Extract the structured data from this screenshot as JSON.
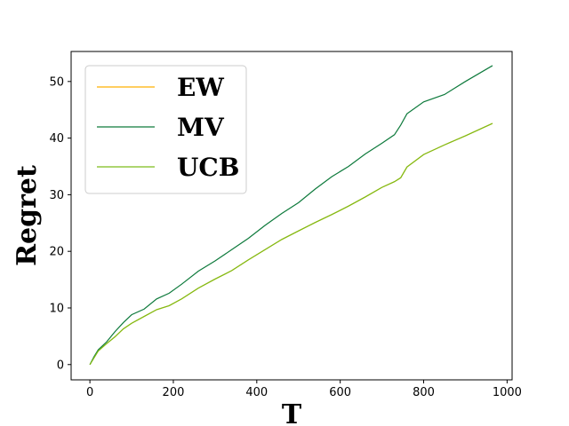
{
  "chart_data": {
    "type": "line",
    "title": "",
    "xlabel": "T",
    "ylabel": "Regret",
    "xlim": [
      -45,
      1012
    ],
    "ylim": [
      -2.7,
      55.3
    ],
    "xticks": [
      0,
      200,
      400,
      600,
      800,
      1000
    ],
    "yticks": [
      0,
      10,
      20,
      30,
      40,
      50
    ],
    "xtick_labels": [
      "0",
      "200",
      "400",
      "600",
      "800",
      "1000"
    ],
    "ytick_labels": [
      "0",
      "10",
      "20",
      "30",
      "40",
      "50"
    ],
    "grid": false,
    "legend_position": "top-left",
    "series": [
      {
        "name": "EW",
        "color": "#ffb000",
        "x": [
          0,
          10,
          20,
          40,
          60,
          80,
          100,
          130,
          160,
          190,
          220,
          260,
          300,
          340,
          380,
          420,
          460,
          500,
          540,
          580,
          620,
          660,
          700,
          730,
          745,
          760,
          800,
          850,
          900,
          965
        ],
        "y": [
          0,
          1.2,
          2.4,
          3.7,
          4.9,
          6.3,
          7.3,
          8.5,
          9.7,
          10.4,
          11.6,
          13.5,
          15.1,
          16.6,
          18.5,
          20.3,
          22.1,
          23.6,
          25.1,
          26.5,
          28.0,
          29.6,
          31.3,
          32.3,
          33.0,
          34.9,
          37.1,
          38.8,
          40.4,
          42.6
        ]
      },
      {
        "name": "MV",
        "color": "#0e7a3c",
        "x": [
          0,
          10,
          20,
          40,
          60,
          80,
          100,
          130,
          160,
          190,
          220,
          260,
          300,
          340,
          380,
          420,
          460,
          500,
          540,
          580,
          620,
          660,
          700,
          730,
          745,
          760,
          800,
          850,
          900,
          965
        ],
        "y": [
          0,
          1.4,
          2.6,
          4.0,
          5.8,
          7.4,
          8.8,
          9.8,
          11.6,
          12.6,
          14.2,
          16.5,
          18.3,
          20.3,
          22.3,
          24.6,
          26.7,
          28.6,
          31.0,
          33.2,
          35.0,
          37.2,
          39.1,
          40.6,
          42.3,
          44.3,
          46.4,
          47.7,
          50.0,
          52.8
        ]
      },
      {
        "name": "UCB",
        "color": "#7cbc1a",
        "x": [
          0,
          10,
          20,
          40,
          60,
          80,
          100,
          130,
          160,
          190,
          220,
          260,
          300,
          340,
          380,
          420,
          460,
          500,
          540,
          580,
          620,
          660,
          700,
          730,
          745,
          760,
          800,
          850,
          900,
          965
        ],
        "y": [
          0,
          1.2,
          2.4,
          3.7,
          4.9,
          6.3,
          7.3,
          8.5,
          9.7,
          10.4,
          11.6,
          13.5,
          15.1,
          16.6,
          18.5,
          20.3,
          22.1,
          23.6,
          25.1,
          26.5,
          28.0,
          29.6,
          31.3,
          32.3,
          33.0,
          34.9,
          37.1,
          38.8,
          40.4,
          42.6
        ]
      }
    ]
  }
}
